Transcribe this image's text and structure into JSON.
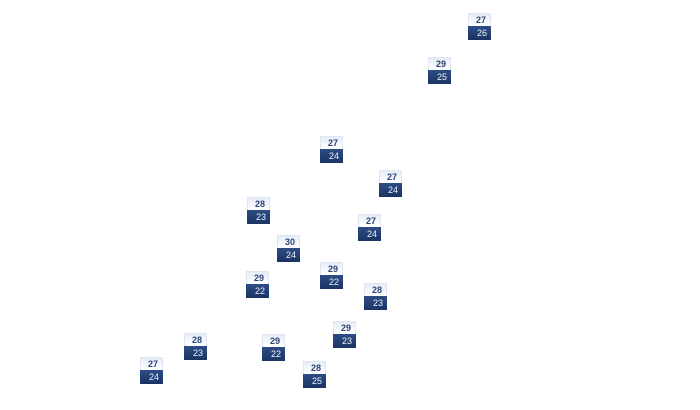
{
  "markers": [
    {
      "high": "27",
      "low": "26"
    },
    {
      "high": "29",
      "low": "25"
    },
    {
      "high": "27",
      "low": "24"
    },
    {
      "high": "27",
      "low": "24"
    },
    {
      "high": "28",
      "low": "23"
    },
    {
      "high": "27",
      "low": "24"
    },
    {
      "high": "30",
      "low": "24"
    },
    {
      "high": "29",
      "low": "22"
    },
    {
      "high": "29",
      "low": "22"
    },
    {
      "high": "28",
      "low": "23"
    },
    {
      "high": "29",
      "low": "23"
    },
    {
      "high": "28",
      "low": "23"
    },
    {
      "high": "29",
      "low": "22"
    },
    {
      "high": "27",
      "low": "24"
    },
    {
      "high": "28",
      "low": "25"
    }
  ],
  "colors": {
    "high_text": "#2c4476",
    "low_background": "#1f3a6e",
    "low_text": "#eef2fa"
  }
}
